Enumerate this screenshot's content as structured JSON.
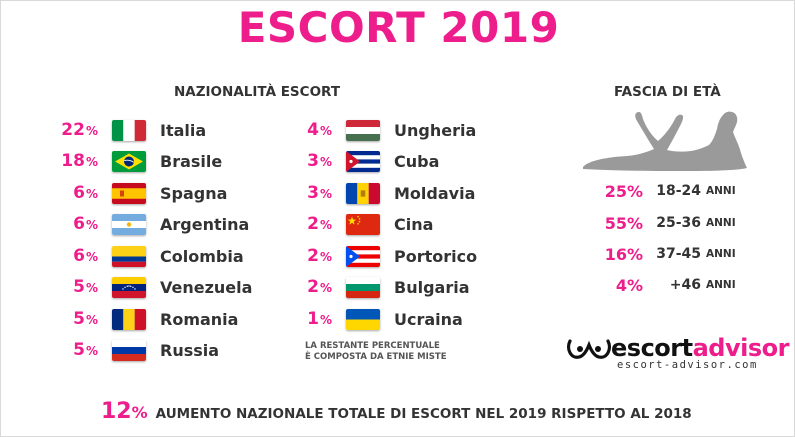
{
  "title": "ESCORT 2019",
  "nationality": {
    "heading": "NAZIONALITÀ ESCORT",
    "column1": [
      {
        "pct": "22",
        "country": "Italia",
        "flag": "italy"
      },
      {
        "pct": "18",
        "country": "Brasile",
        "flag": "brazil"
      },
      {
        "pct": "6",
        "country": "Spagna",
        "flag": "spain"
      },
      {
        "pct": "6",
        "country": "Argentina",
        "flag": "argentina"
      },
      {
        "pct": "6",
        "country": "Colombia",
        "flag": "colombia"
      },
      {
        "pct": "5",
        "country": "Venezuela",
        "flag": "venezuela"
      },
      {
        "pct": "5",
        "country": "Romania",
        "flag": "romania"
      },
      {
        "pct": "5",
        "country": "Russia",
        "flag": "russia"
      }
    ],
    "column2": [
      {
        "pct": "4",
        "country": "Ungheria",
        "flag": "hungary"
      },
      {
        "pct": "3",
        "country": "Cuba",
        "flag": "cuba"
      },
      {
        "pct": "3",
        "country": "Moldavia",
        "flag": "moldova"
      },
      {
        "pct": "2",
        "country": "Cina",
        "flag": "china"
      },
      {
        "pct": "2",
        "country": "Portorico",
        "flag": "puerto-rico"
      },
      {
        "pct": "2",
        "country": "Bulgaria",
        "flag": "bulgaria"
      },
      {
        "pct": "1",
        "country": "Ucraina",
        "flag": "ukraine"
      }
    ],
    "pct_sign": "%",
    "note_line1": "LA RESTANTE PERCENTUALE",
    "note_line2": "È COMPOSTA DA ETNIE MISTE"
  },
  "age": {
    "heading": "FASCIA DI ETÀ",
    "rows": [
      {
        "pct": "25%",
        "range": "18-24",
        "unit": "ANNI"
      },
      {
        "pct": "55%",
        "range": "25-36",
        "unit": "ANNI"
      },
      {
        "pct": "16%",
        "range": "37-45",
        "unit": "ANNI"
      },
      {
        "pct": "4%",
        "range": "+46",
        "unit": "ANNI"
      }
    ],
    "silhouette_icon": "reclining-woman-silhouette-icon"
  },
  "brand": {
    "name_part1": "escort",
    "name_part2": "advisor",
    "url": "escort-advisor.com",
    "logo_icon": "escortadvisor-logo-icon"
  },
  "footer": {
    "pct": "12",
    "pct_sign": "%",
    "text": "AUMENTO NAZIONALE TOTALE DI ESCORT NEL 2019 RISPETTO AL 2018"
  },
  "colors": {
    "accent": "#ee1d8c",
    "text": "#333333",
    "silhouette": "#9a9a9a"
  }
}
